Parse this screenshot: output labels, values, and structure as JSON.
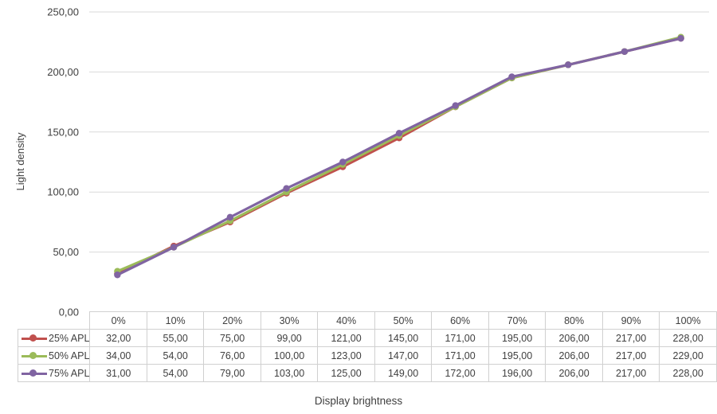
{
  "chart_data": {
    "type": "line",
    "xlabel": "Display brightness",
    "ylabel": "Light density",
    "ylim": [
      0,
      250
    ],
    "yticks": [
      "0,00",
      "50,00",
      "100,00",
      "150,00",
      "200,00",
      "250,00"
    ],
    "grid": true,
    "legend": "data-table",
    "categories": [
      "0%",
      "10%",
      "20%",
      "30%",
      "40%",
      "50%",
      "60%",
      "70%",
      "80%",
      "90%",
      "100%"
    ],
    "series": [
      {
        "name": "25% APL",
        "color": "#c0504d",
        "values": [
          32,
          55,
          75,
          99,
          121,
          145,
          171,
          195,
          206,
          217,
          228
        ],
        "labels": [
          "32,00",
          "55,00",
          "75,00",
          "99,00",
          "121,00",
          "145,00",
          "171,00",
          "195,00",
          "206,00",
          "217,00",
          "228,00"
        ]
      },
      {
        "name": "50% APL",
        "color": "#9bbb59",
        "values": [
          34,
          54,
          76,
          100,
          123,
          147,
          171,
          195,
          206,
          217,
          229
        ],
        "labels": [
          "34,00",
          "54,00",
          "76,00",
          "100,00",
          "123,00",
          "147,00",
          "171,00",
          "195,00",
          "206,00",
          "217,00",
          "229,00"
        ]
      },
      {
        "name": "75% APL",
        "color": "#8064a2",
        "values": [
          31,
          54,
          79,
          103,
          125,
          149,
          172,
          196,
          206,
          217,
          228
        ],
        "labels": [
          "31,00",
          "54,00",
          "79,00",
          "103,00",
          "125,00",
          "149,00",
          "172,00",
          "196,00",
          "206,00",
          "217,00",
          "228,00"
        ]
      }
    ]
  }
}
